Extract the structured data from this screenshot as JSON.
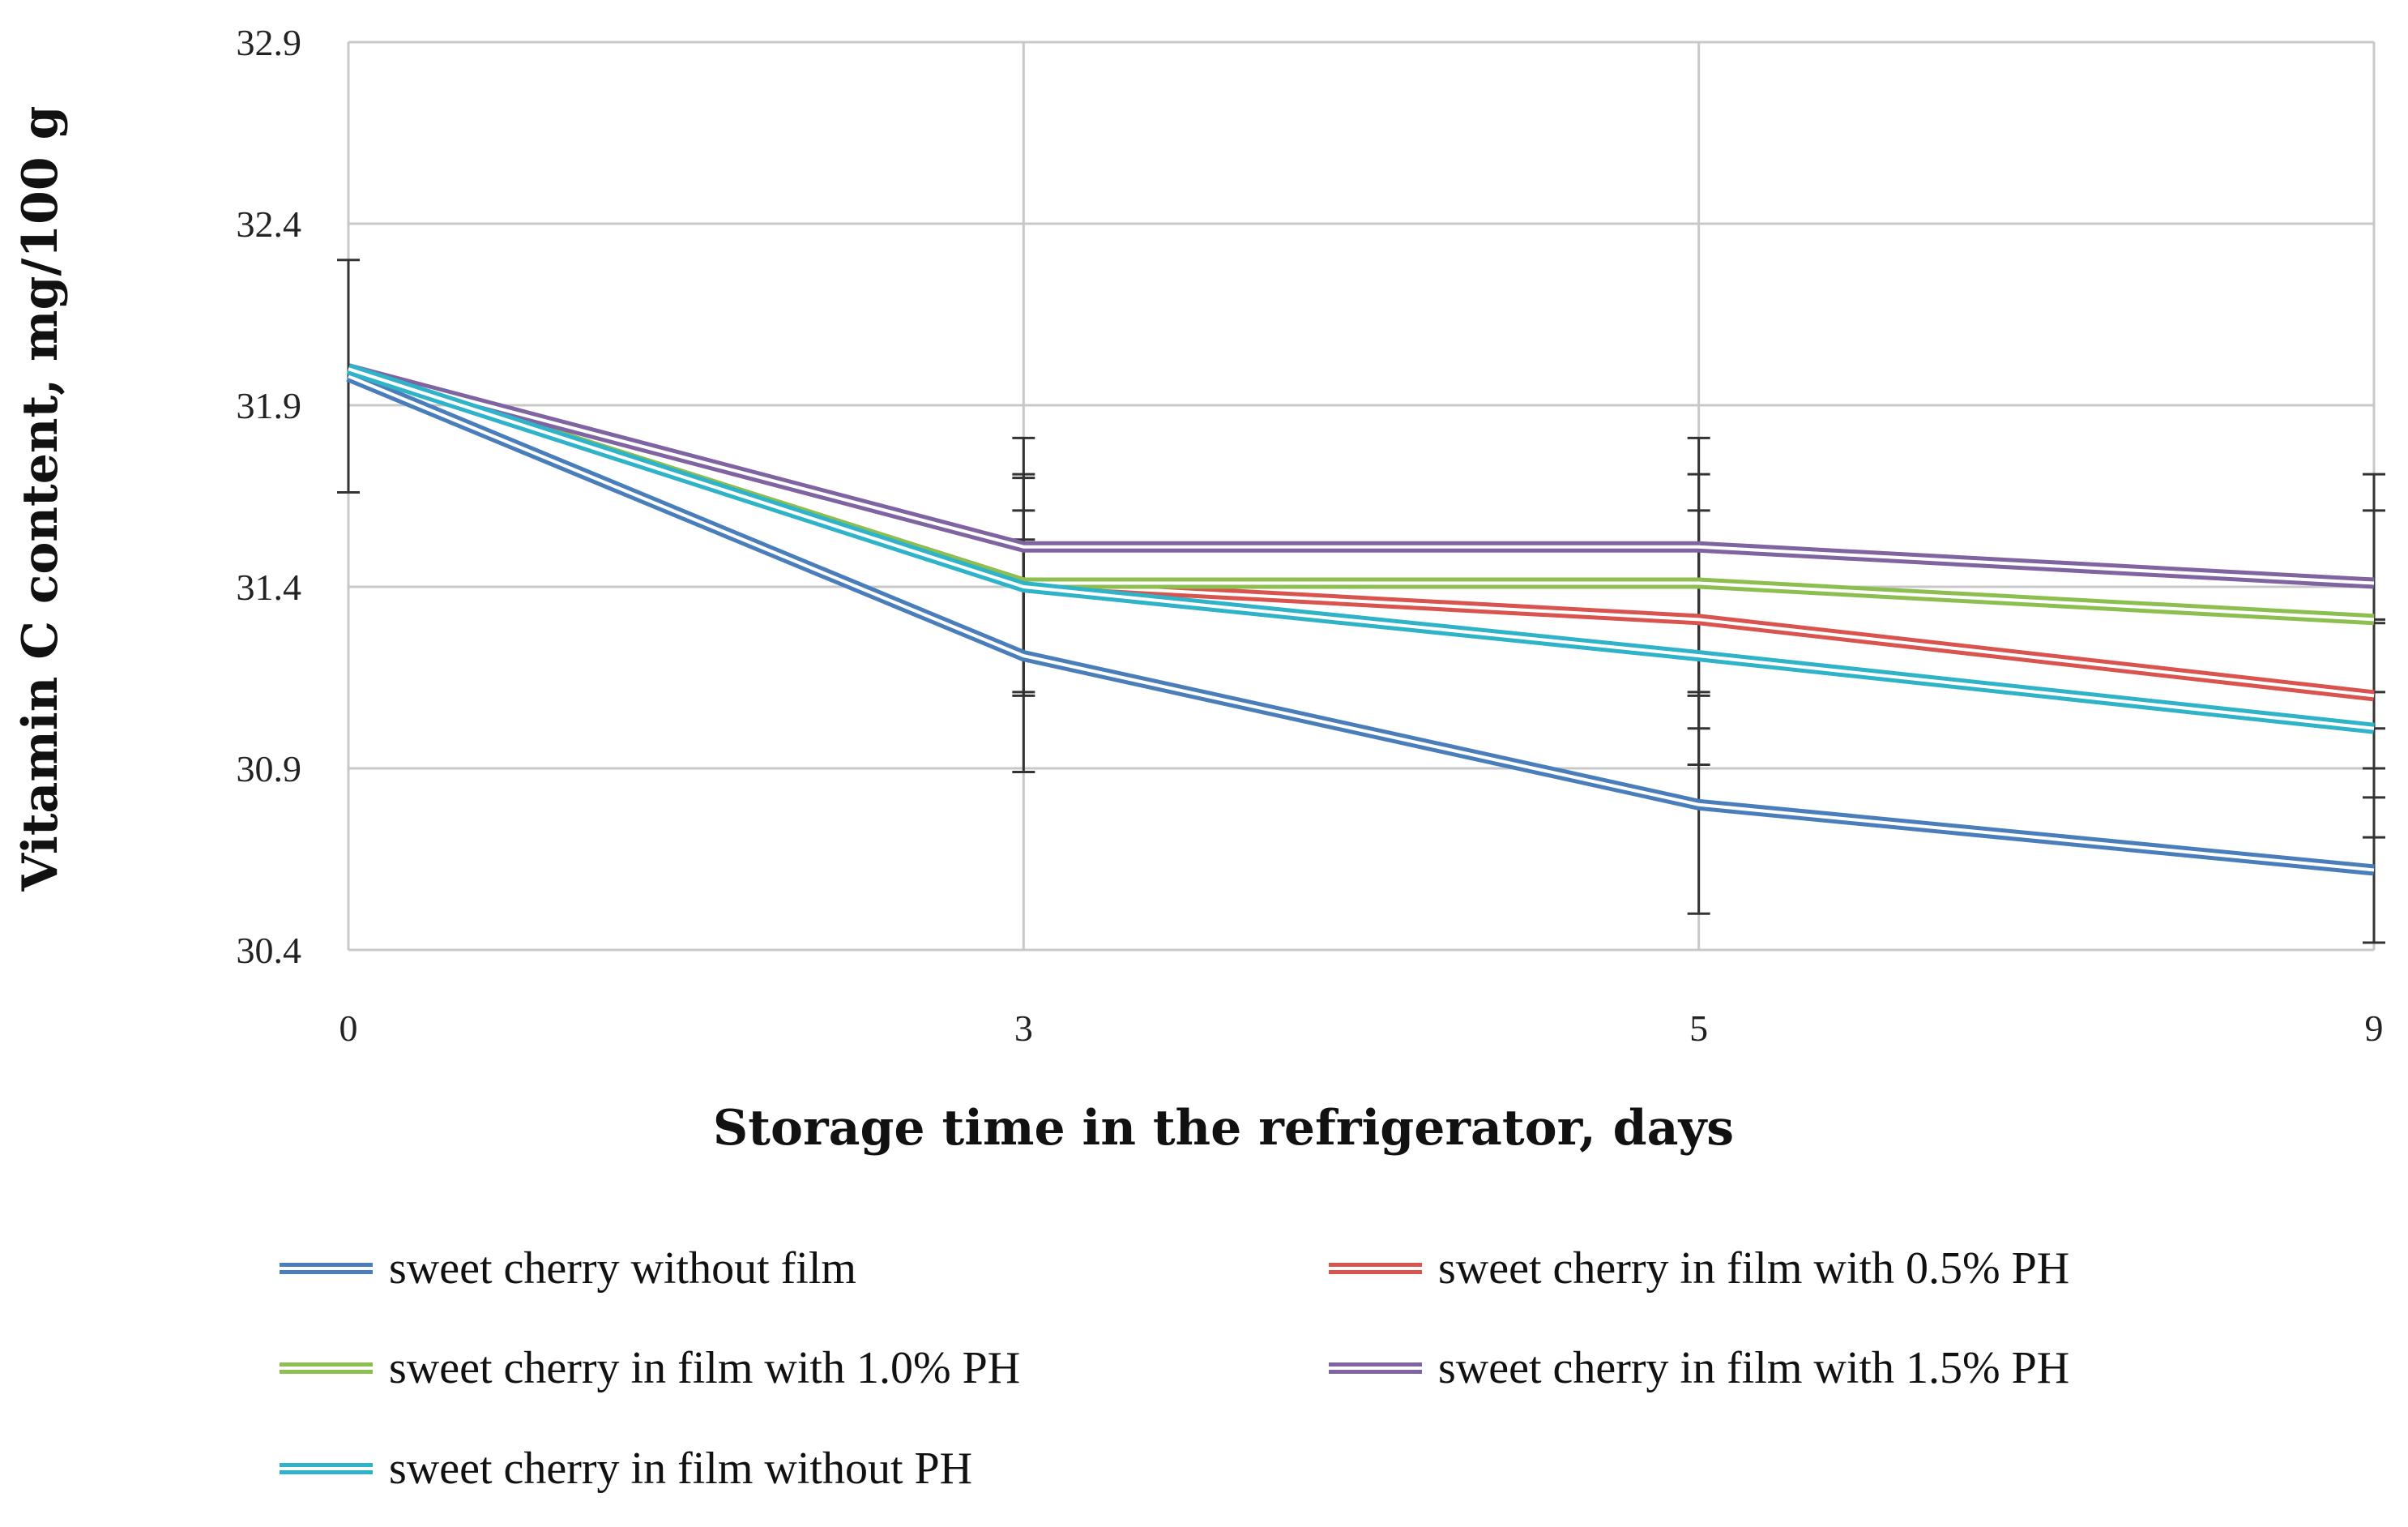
{
  "chart_data": {
    "type": "line",
    "title": "",
    "xlabel": "Storage time in the refrigerator, days",
    "ylabel": "Vitamin C content, mg/100 g",
    "categories": [
      "0",
      "3",
      "5",
      "9"
    ],
    "yticks": [
      "30.4",
      "30.9",
      "31.4",
      "31.9",
      "32.4",
      "32.9"
    ],
    "ylim": [
      30.4,
      32.9
    ],
    "grid": true,
    "legend_position": "bottom",
    "series": [
      {
        "name": "sweet cherry  without film",
        "color": "#4a7ebb",
        "values": [
          31.98,
          31.21,
          30.8,
          30.62
        ],
        "errors": [
          0.32,
          0.32,
          0.3,
          0.2
        ]
      },
      {
        "name": "sweet cherry  in film with 0.5% PH",
        "color": "#d9534f",
        "values": [
          32.0,
          31.41,
          31.31,
          31.1
        ],
        "errors": [
          0,
          0.2,
          0.3,
          0.2
        ]
      },
      {
        "name": "sweet cherry in film with 1.0% PH",
        "color": "#8cbf4f",
        "values": [
          32.0,
          31.41,
          31.41,
          31.31
        ],
        "errors": [
          0,
          0.3,
          0.3,
          0.3
        ]
      },
      {
        "name": "sweet cherry  in film with 1.5% PH",
        "color": "#8064a2",
        "values": [
          32.0,
          31.51,
          31.51,
          31.41
        ],
        "errors": [
          0,
          0.3,
          0.3,
          0.3
        ]
      },
      {
        "name": "sweet cherry  in film without PH",
        "color": "#2fb3c8",
        "values": [
          32.0,
          31.4,
          31.21,
          31.01
        ],
        "errors": [
          0,
          0.3,
          0.3,
          0.3
        ]
      }
    ]
  }
}
